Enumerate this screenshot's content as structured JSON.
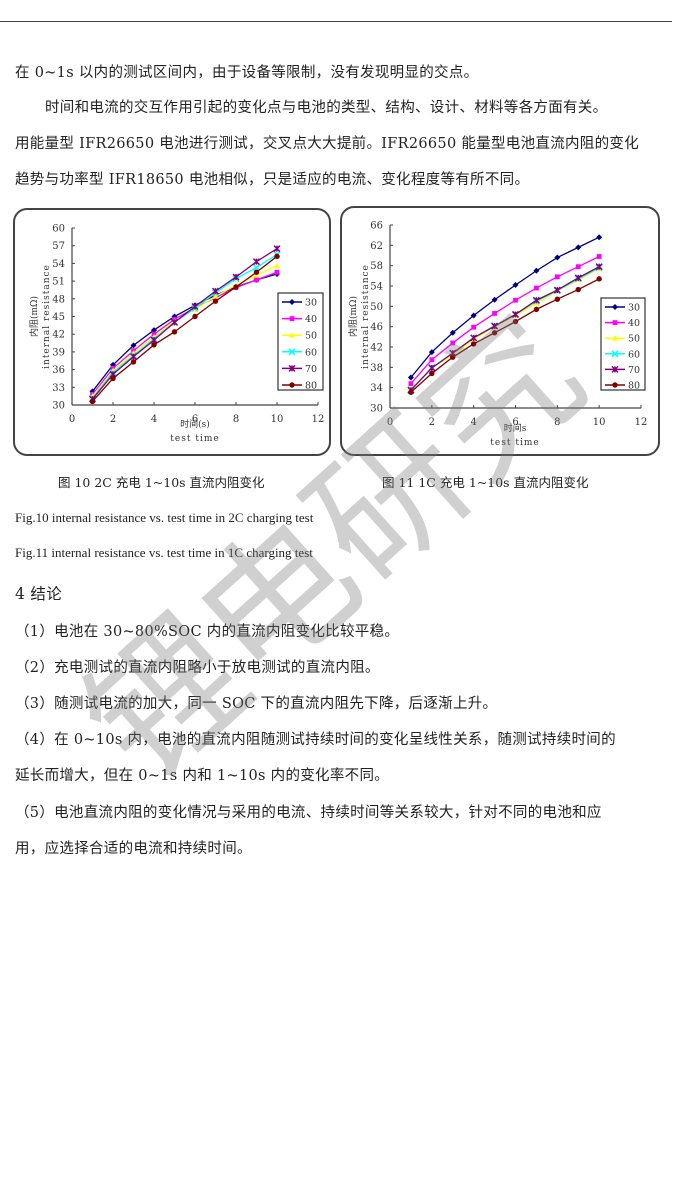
{
  "body": {
    "lines": [
      "在 0~1s 以内的测试区间内，由于设备等限制，没有发现明显的交点。",
      "时间和电流的交互作用引起的变化点与电池的类型、结构、设计、材料等各方面有关。",
      "用能量型 IFR26650 电池进行测试，交叉点大大提前。IFR26650 能量型电池直流内阻的变化",
      "趋势与功率型 IFR18650 电池相似，只是适应的电流、变化程度等有所不同。"
    ],
    "fig10_caption_cn": "图 10 2C 充电 1~10s  直流内阻变化",
    "fig11_caption_cn": "图 11 1C 充电 1~10s  直流内阻变化",
    "fig10_caption_en": "Fig.10 internal resistance vs. test time in 2C charging test",
    "fig11_caption_en": "Fig.11 internal resistance vs. test time in 1C charging test",
    "section_heading": "4  结论",
    "conclusions": [
      "（1）电池在 30~80%SOC 内的直流内阻变化比较平稳。",
      "（2）充电测试的直流内阻略小于放电测试的直流内阻。",
      "（3）随测试电流的加大，同一 SOC 下的直流内阻先下降，后逐渐上升。",
      "（4）在 0~10s 内，电池的直流内阻随测试持续时间的变化呈线性关系，随测试持续时间的",
      "延长而增大，但在 0~1s 内和 1~10s 内的变化率不同。",
      "（5）电池直流内阻的变化情况与采用的电流、持续时间等关系较大，针对不同的电池和应",
      "用，应选择合适的电流和持续时间。"
    ],
    "watermark": "锂电研究"
  },
  "chart_data": [
    {
      "type": "line",
      "title": "",
      "xlabel": [
        "时间(s)",
        "test time"
      ],
      "ylabel": [
        "内阻(mΩ)",
        "internal resistance"
      ],
      "xlim": [
        0,
        12
      ],
      "xticks": [
        0,
        2,
        4,
        6,
        8,
        10,
        12
      ],
      "ylim": [
        30,
        60
      ],
      "yticks": [
        30,
        33,
        36,
        39,
        42,
        45,
        48,
        51,
        54,
        57,
        60
      ],
      "legend": "right",
      "grid": false,
      "x": [
        1,
        2,
        3,
        4,
        5,
        6,
        7,
        8,
        9,
        10
      ],
      "series": [
        {
          "name": "30",
          "color": "#000080",
          "marker": "diamond",
          "values": [
            32.3,
            36.8,
            40.1,
            42.7,
            45.0,
            46.9,
            48.6,
            50.0,
            51.2,
            52.2
          ]
        },
        {
          "name": "40",
          "color": "#ff00ff",
          "marker": "square",
          "values": [
            31.8,
            36.2,
            39.2,
            42.0,
            44.5,
            46.5,
            48.2,
            49.9,
            51.2,
            52.5
          ]
        },
        {
          "name": "50",
          "color": "#ffff00",
          "marker": "triangle",
          "values": [
            31.5,
            35.8,
            38.8,
            41.5,
            44.2,
            46.2,
            48.4,
            50.3,
            52.0,
            53.6
          ]
        },
        {
          "name": "60",
          "color": "#00ffff",
          "marker": "x",
          "values": [
            31.2,
            35.5,
            38.4,
            41.2,
            44.0,
            46.4,
            49.0,
            51.4,
            53.3,
            55.5
          ]
        },
        {
          "name": "70",
          "color": "#800080",
          "marker": "star",
          "values": [
            31.0,
            35.2,
            38.2,
            41.0,
            44.0,
            46.7,
            49.3,
            51.7,
            54.3,
            56.5
          ]
        },
        {
          "name": "80",
          "color": "#800000",
          "marker": "circle",
          "values": [
            30.6,
            34.5,
            37.3,
            40.2,
            42.4,
            45.0,
            47.6,
            50.0,
            52.5,
            55.2
          ]
        }
      ]
    },
    {
      "type": "line",
      "title": "",
      "xlabel": [
        "时间s",
        "test time"
      ],
      "ylabel": [
        "内阻(mΩ)",
        "internal resistance"
      ],
      "xlim": [
        0,
        12
      ],
      "xticks": [
        0,
        2,
        4,
        6,
        8,
        10,
        12
      ],
      "ylim": [
        30,
        66
      ],
      "yticks": [
        30,
        34,
        38,
        42,
        46,
        50,
        54,
        58,
        62,
        66
      ],
      "legend": "right",
      "grid": false,
      "x": [
        1,
        2,
        3,
        4,
        5,
        6,
        7,
        8,
        9,
        10
      ],
      "series": [
        {
          "name": "30",
          "color": "#000080",
          "marker": "diamond",
          "values": [
            36.0,
            41.0,
            44.8,
            48.2,
            51.3,
            54.2,
            57.0,
            59.6,
            61.6,
            63.6
          ]
        },
        {
          "name": "40",
          "color": "#ff00ff",
          "marker": "square",
          "values": [
            34.8,
            39.5,
            42.8,
            45.9,
            48.6,
            51.2,
            53.6,
            55.8,
            57.8,
            59.8
          ]
        },
        {
          "name": "50",
          "color": "#ffff00",
          "marker": "triangle",
          "values": [
            33.8,
            37.8,
            40.5,
            43.5,
            46.0,
            48.2,
            50.6,
            53.0,
            55.2,
            57.4
          ]
        },
        {
          "name": "60",
          "color": "#00ffff",
          "marker": "x",
          "values": [
            33.6,
            37.8,
            40.8,
            43.8,
            46.2,
            48.4,
            51.0,
            53.1,
            55.4,
            57.6
          ]
        },
        {
          "name": "70",
          "color": "#800080",
          "marker": "star",
          "values": [
            33.5,
            37.9,
            40.8,
            43.8,
            46.1,
            48.4,
            51.2,
            53.2,
            55.6,
            57.8
          ]
        },
        {
          "name": "80",
          "color": "#800000",
          "marker": "circle",
          "values": [
            33.1,
            36.8,
            40.0,
            42.6,
            44.8,
            47.0,
            49.4,
            51.4,
            53.3,
            55.4
          ]
        }
      ]
    }
  ]
}
